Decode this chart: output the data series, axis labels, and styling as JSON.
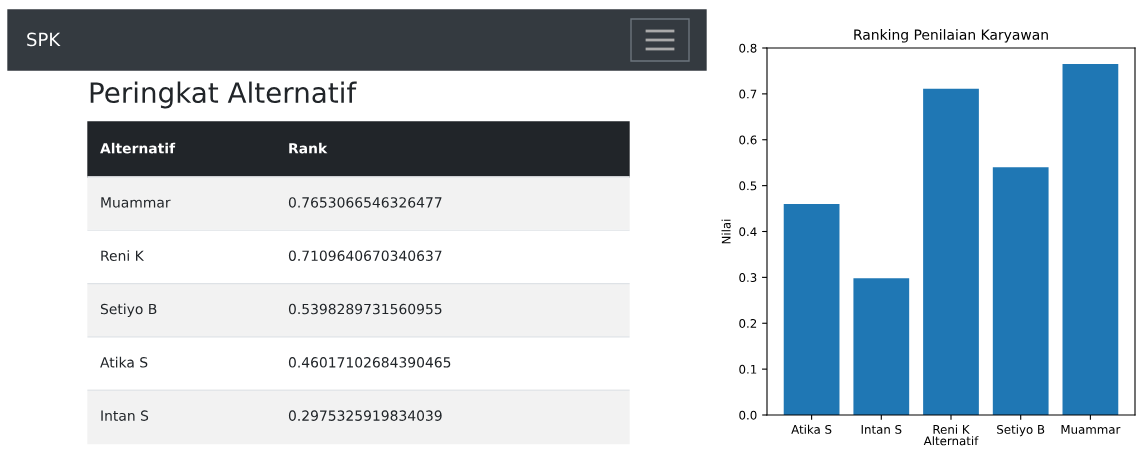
{
  "chart_data": [
    {
      "type": "other",
      "title": "Peringkat Alternatif",
      "annotations": [
        "SPK"
      ],
      "xlabel": "Alternatif",
      "ylabel": "Rank",
      "categories": [
        "Muammar",
        "Reni K",
        "Setiyo B",
        "Atika S",
        "Intan S"
      ],
      "value_labels": [
        "0.7653066546326477",
        "0.7109640670340637",
        "0.5398289731560955",
        "0.46017102684390465",
        "0.2975325919834039"
      ]
    },
    {
      "type": "bar",
      "title": "Ranking Penilaian Karyawan",
      "xlabel": "Alternatif",
      "ylabel": "Nilai",
      "categories": [
        "Atika S",
        "Intan S",
        "Reni K",
        "Setiyo B",
        "Muammar"
      ],
      "values": [
        0.46,
        0.298,
        0.711,
        0.54,
        0.765
      ],
      "color": "#1f77b4",
      "ylim": [
        0,
        0.8
      ],
      "yticks": [
        {
          "value": 0,
          "label": "0.0"
        },
        0.1,
        0.2,
        0.3,
        0.4,
        0.5,
        0.6,
        0.7,
        0.8
      ]
    }
  ]
}
